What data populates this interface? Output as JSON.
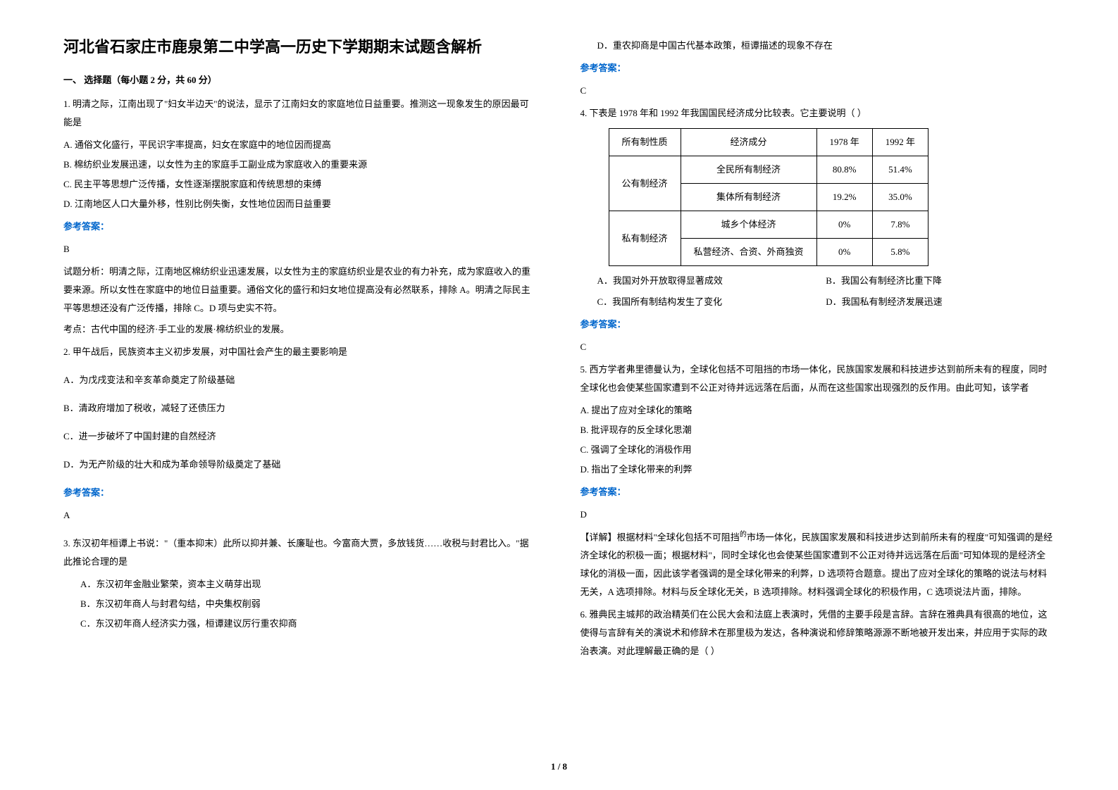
{
  "title": "河北省石家庄市鹿泉第二中学高一历史下学期期末试题含解析",
  "section1_header": "一、 选择题（每小题 2 分，共 60 分）",
  "q1": {
    "stem": "1. 明清之际，江南出现了\"妇女半边天\"的说法，显示了江南妇女的家庭地位日益重要。推测这一现象发生的原因最可能是",
    "a": "A. 通俗文化盛行，平民识字率提高，妇女在家庭中的地位因而提高",
    "b": "B. 棉纺织业发展迅速，以女性为主的家庭手工副业成为家庭收入的重要来源",
    "c": "C. 民主平等思想广泛传播，女性逐渐摆脱家庭和传统思想的束缚",
    "d": "D. 江南地区人口大量外移，性别比例失衡，女性地位因而日益重要",
    "answer": "B",
    "analysis1": "试题分析：明清之际，江南地区棉纺织业迅速发展，以女性为主的家庭纺织业是农业的有力补充，成为家庭收入的重要来源。所以女性在家庭中的地位日益重要。通俗文化的盛行和妇女地位提高没有必然联系，排除 A。明清之际民主平等思想还没有广泛传播，排除 C。D 项与史实不符。",
    "analysis2": "考点：古代中国的经济·手工业的发展·棉纺织业的发展。"
  },
  "q2": {
    "stem": "2. 甲午战后，民族资本主义初步发展，对中国社会产生的最主要影响是",
    "a": "A．为戊戌变法和辛亥革命奠定了阶级基础",
    "b": "B．清政府增加了税收，减轻了还债压力",
    "c": "C．进一步破坏了中国封建的自然经济",
    "d": "D．为无产阶级的壮大和成为革命领导阶级奠定了基础",
    "answer": "A"
  },
  "q3": {
    "stem": "3. 东汉初年桓谭上书说：\"（重本抑末）此所以抑并兼、长廉耻也。今富商大贾，多放钱货……收税与封君比入。\"据此推论合理的是",
    "a": "A．东汉初年金融业繁荣，资本主义萌芽出现",
    "b": "B．东汉初年商人与封君勾结，中央集权削弱",
    "c": "C．东汉初年商人经济实力强，桓谭建议厉行重农抑商",
    "d": "D．重农抑商是中国古代基本政策，桓谭描述的现象不存在",
    "answer": "C"
  },
  "q4": {
    "stem": "4. 下表是 1978 年和 1992 年我国国民经济成分比较表。它主要说明（        ）",
    "a": "A．我国对外开放取得显著成效",
    "b": "B．我国公有制经济比重下降",
    "c": "C．我国所有制结构发生了变化",
    "d": "D．我国私有制经济发展迅速",
    "answer": "C",
    "table": {
      "headers": [
        "所有制性质",
        "经济成分",
        "1978 年",
        "1992 年"
      ],
      "rows": [
        [
          "公有制经济",
          "全民所有制经济",
          "80.8%",
          "51.4%"
        ],
        [
          "",
          "集体所有制经济",
          "19.2%",
          "35.0%"
        ],
        [
          "私有制经济",
          "城乡个体经济",
          "0%",
          "7.8%"
        ],
        [
          "",
          "私营经济、合资、外商独资",
          "0%",
          "5.8%"
        ]
      ]
    }
  },
  "q5": {
    "stem": "5. 西方学者弗里德曼认为，全球化包括不可阻挡的市场一体化，民族国家发展和科技进步达到前所未有的程度，同时全球化也会使某些国家遭到不公正对待并远远落在后面，从而在这些国家出现强烈的反作用。由此可知，该学者",
    "a": "A. 提出了应对全球化的策略",
    "b": "B. 批评现存的反全球化思潮",
    "c": "C. 强调了全球化的消极作用",
    "d": "D. 指出了全球化带来的利弊",
    "answer": "D",
    "analysis": "【详解】根据材料\"全球化包括不可阻挡的市场一体化，民族国家发展和科技进步达到前所未有的程度\"可知强调的是经济全球化的积极一面；根据材料\"，同时全球化也会使某些国家遭到不公正对待并远远落在后面\"可知体现的是经济全球化的消极一面，因此该学者强调的是全球化带来的利弊，D 选项符合题意。提出了应对全球化的策略的说法与材料无关，A 选项排除。材料与反全球化无关，B 选项排除。材料强调全球化的积极作用，C 选项说法片面，排除。"
  },
  "q6": {
    "stem": "6. 雅典民主城邦的政治精英们在公民大会和法庭上表演时，凭借的主要手段是言辞。言辞在雅典具有很高的地位，这使得与言辞有关的演说术和修辞术在那里极为发达，各种演说和修辞策略源源不断地被开发出来，并应用于实际的政治表演。对此理解最正确的是（     ）"
  },
  "answer_label": "参考答案：",
  "page_number": "1 / 8",
  "highlight_char": "的"
}
